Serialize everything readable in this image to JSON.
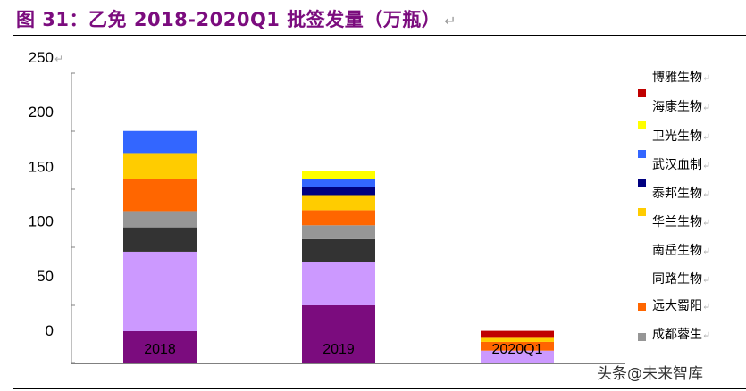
{
  "title": "图 31：乙免 2018-2020Q1 批签发量（万瓶）",
  "watermark": "头条@未来智库",
  "chart_data": {
    "type": "bar",
    "stacked": true,
    "title": "图 31：乙免 2018-2020Q1 批签发量（万瓶）",
    "categories": [
      "2018",
      "2019",
      "2020Q1"
    ],
    "ylim": [
      0,
      250
    ],
    "yticks": [
      "250",
      "200",
      "150",
      "100",
      "50",
      "0"
    ],
    "grid": false,
    "legend_position": "right",
    "series": [
      {
        "color": "#7B0C7E",
        "values": [
          27.7,
          50,
          0
        ]
      },
      {
        "name": "同路生物",
        "color": "#CC99FF",
        "values": [
          68.5,
          37,
          11
        ]
      },
      {
        "name": "南岳生物",
        "color": "#333333",
        "values": [
          21,
          20,
          0
        ]
      },
      {
        "name": "成都蓉生",
        "color": "#969696",
        "values": [
          14,
          12,
          0
        ]
      },
      {
        "name": "远大蜀阳",
        "color": "#FF6600",
        "values": [
          28,
          13,
          7.5
        ]
      },
      {
        "name": "华兰生物",
        "color": "#FFCC00",
        "values": [
          22,
          13,
          3.5
        ]
      },
      {
        "name": "泰邦生物",
        "color": "#000080",
        "values": [
          0,
          7,
          0
        ]
      },
      {
        "name": "武汉血制",
        "color": "#3366FF",
        "values": [
          19,
          7,
          0
        ]
      },
      {
        "name": "卫光生物",
        "color": "#FFFF00",
        "values": [
          0,
          7,
          0
        ]
      },
      {
        "name": "海康生物",
        "color": "#C00000",
        "values": [
          0,
          0,
          6
        ]
      }
    ],
    "legend": [
      {
        "label": "博雅生物",
        "color": null
      },
      {
        "label": "海康生物",
        "color": "#C00000"
      },
      {
        "label": "卫光生物",
        "color": "#FFFF00"
      },
      {
        "label": "武汉血制",
        "color": "#3366FF"
      },
      {
        "label": "泰邦生物",
        "color": "#000080"
      },
      {
        "label": "华兰生物",
        "color": "#FFCC00"
      },
      {
        "label": "南岳生物",
        "color": null
      },
      {
        "label": "同路生物",
        "color": null
      },
      {
        "label": "远大蜀阳",
        "color": "#FF6600"
      },
      {
        "label": "成都蓉生",
        "color": "#969696"
      }
    ]
  }
}
